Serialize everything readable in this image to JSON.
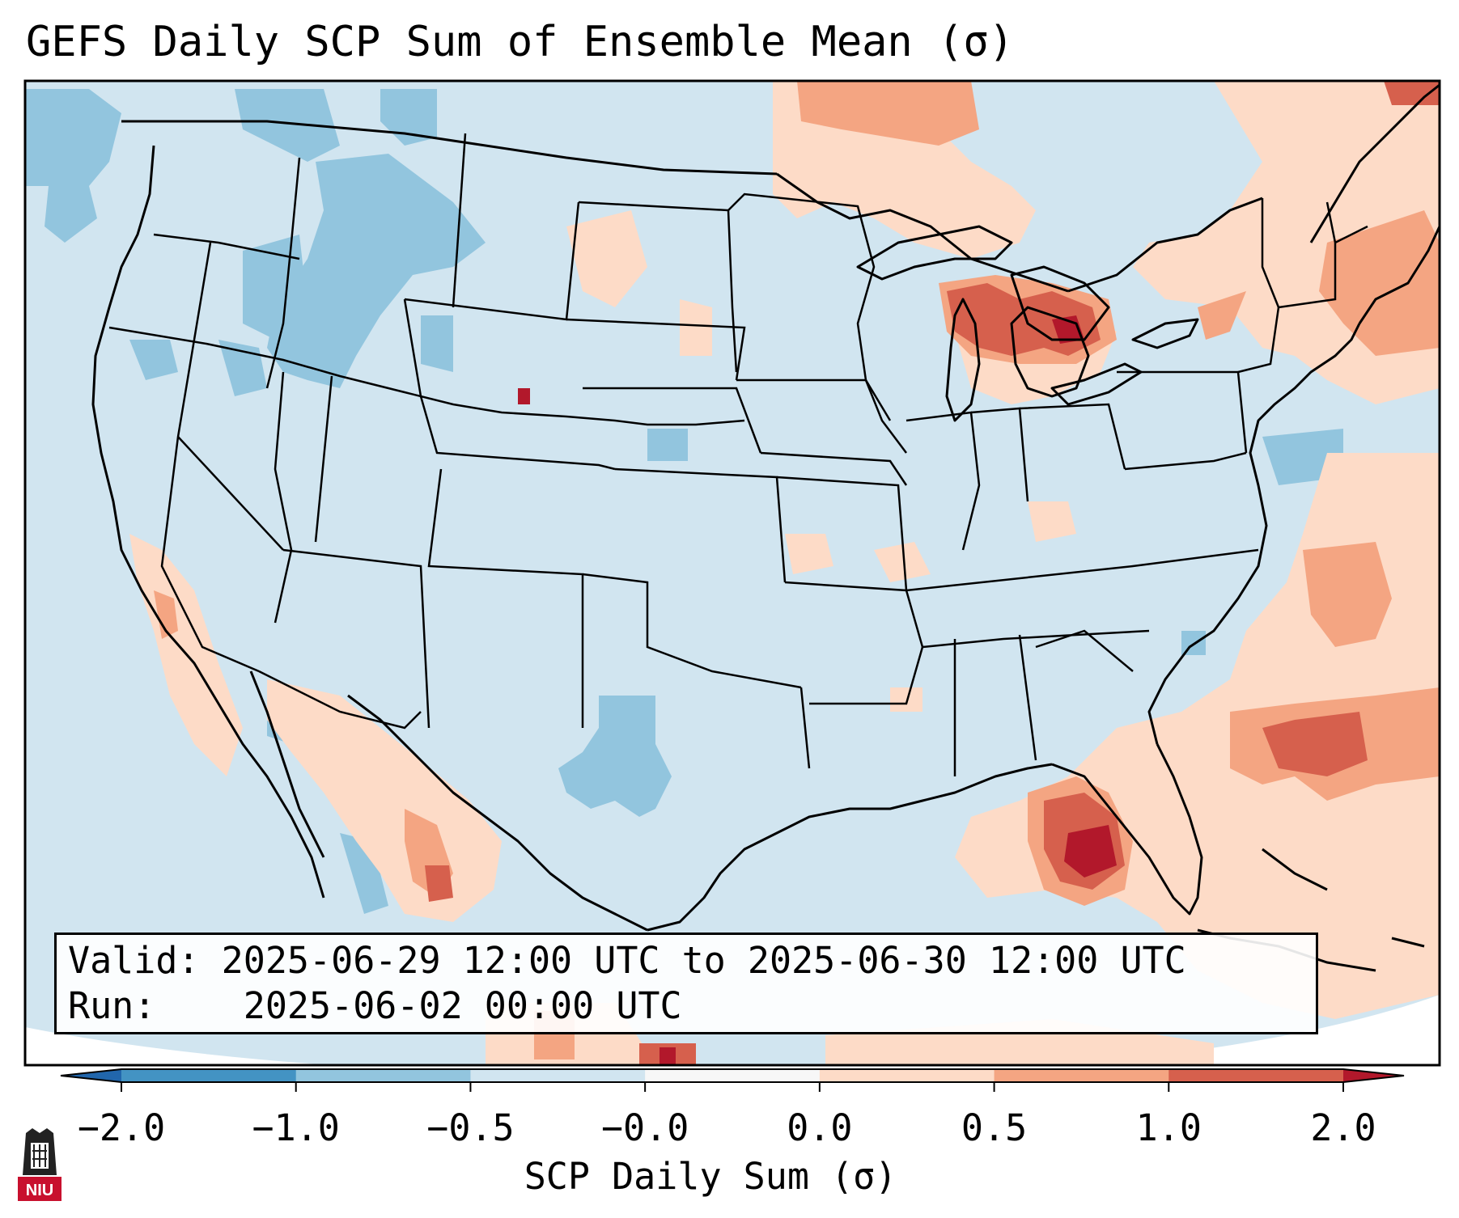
{
  "title": "GEFS Daily SCP Sum of Ensemble Mean (σ)",
  "info": {
    "valid_label": "Valid:",
    "valid_value": "2025-06-29 12:00 UTC to 2025-06-30 12:00 UTC",
    "run_label": "Run:",
    "run_value": "2025-06-02 00:00 UTC"
  },
  "colorbar": {
    "label": "SCP Daily Sum (σ)",
    "ticks": [
      "−2.0",
      "−1.0",
      "−0.5",
      "−0.0",
      "0.0",
      "0.5",
      "1.0",
      "2.0"
    ],
    "bins": [
      {
        "range": "< -2.0",
        "color": "#2166ac"
      },
      {
        "range": "-2.0 to -1.0",
        "color": "#4393c3"
      },
      {
        "range": "-1.0 to -0.5",
        "color": "#92c5de"
      },
      {
        "range": "-0.5 to -0.0",
        "color": "#d1e5f0"
      },
      {
        "range": "-0.0 to 0.0",
        "color": "#f7f7f7"
      },
      {
        "range": "0.0 to 0.5",
        "color": "#fddbc7"
      },
      {
        "range": "0.5 to 1.0",
        "color": "#f4a582"
      },
      {
        "range": "1.0 to 2.0",
        "color": "#d6604d"
      },
      {
        "range": "> 2.0",
        "color": "#b2182b"
      }
    ]
  },
  "map": {
    "region": "Contiguous United States",
    "background_color": "#d1e5f0",
    "notable_features": [
      {
        "area": "Lower Michigan / Great Lakes",
        "level": "1.0 to 2.0 with >2.0 core"
      },
      {
        "area": "Florida peninsula and eastern Gulf",
        "level": "1.0 to 2.0 with >2.0 core"
      },
      {
        "area": "Western Atlantic offshore",
        "level": "0.5 to 2.0"
      },
      {
        "area": "Northern Plains / Ontario",
        "level": "0.0 to 1.0"
      },
      {
        "area": "Idaho / Montana / Pacific Northwest",
        "level": "-1.0 to -0.5"
      },
      {
        "area": "Central Texas",
        "level": "-1.0 to -0.5"
      }
    ]
  },
  "logo": {
    "text": "NIU",
    "color": "#c8102e"
  }
}
